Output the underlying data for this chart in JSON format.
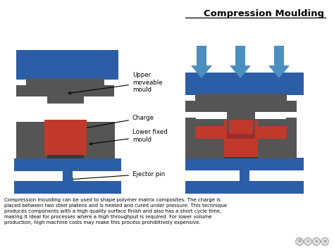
{
  "title": "Compression Moulding",
  "description": "Compression moulding can be used to shape polymer matrix composites. The charge is\nplaced between two steel platens and is heated and cured under pressure. This technique\nproduces components with a high quality surface finish and also has a short cycle time,\nmaking it ideal for processes where a high throughput is required. For lower volume\nproduction, high machine costs may make this process prohibitively expensive.",
  "blue": "#2B5EA7",
  "blue_arrow": "#4A8FC0",
  "dark_gray": "#555555",
  "cavity_gray": "#3a3a3a",
  "red_charge": "#9B2C2C",
  "red_charge2": "#C0392B",
  "white": "#ffffff",
  "label_upper": "Upper\nmoveable\nmould",
  "label_charge": "Charge",
  "label_lower": "Lower fixed\nmould",
  "label_ejector": "Ejector pin"
}
